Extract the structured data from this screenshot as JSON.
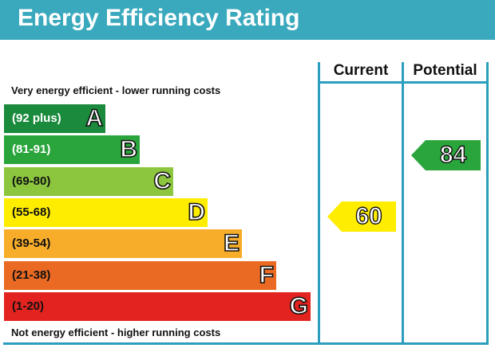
{
  "header": {
    "title": "Energy Efficiency Rating"
  },
  "columns": {
    "current": "Current",
    "potential": "Potential"
  },
  "captions": {
    "top": "Very energy efficient - lower running costs",
    "bottom": "Not energy efficient - higher running costs"
  },
  "bands": [
    {
      "range": "(92 plus)",
      "letter": "A",
      "color": "#1a8a3c"
    },
    {
      "range": "(81-91)",
      "letter": "B",
      "color": "#2aa53c"
    },
    {
      "range": "(69-80)",
      "letter": "C",
      "color": "#8cc63f"
    },
    {
      "range": "(55-68)",
      "letter": "D",
      "color": "#ffed00"
    },
    {
      "range": "(39-54)",
      "letter": "E",
      "color": "#f7ad2a"
    },
    {
      "range": "(21-38)",
      "letter": "F",
      "color": "#ea6a23"
    },
    {
      "range": "(1-20)",
      "letter": "G",
      "color": "#e3231f"
    }
  ],
  "ratings": {
    "current": {
      "value": "60",
      "band": "D",
      "color": "#ffed00"
    },
    "potential": {
      "value": "84",
      "band": "B",
      "color": "#2aa53c"
    }
  }
}
